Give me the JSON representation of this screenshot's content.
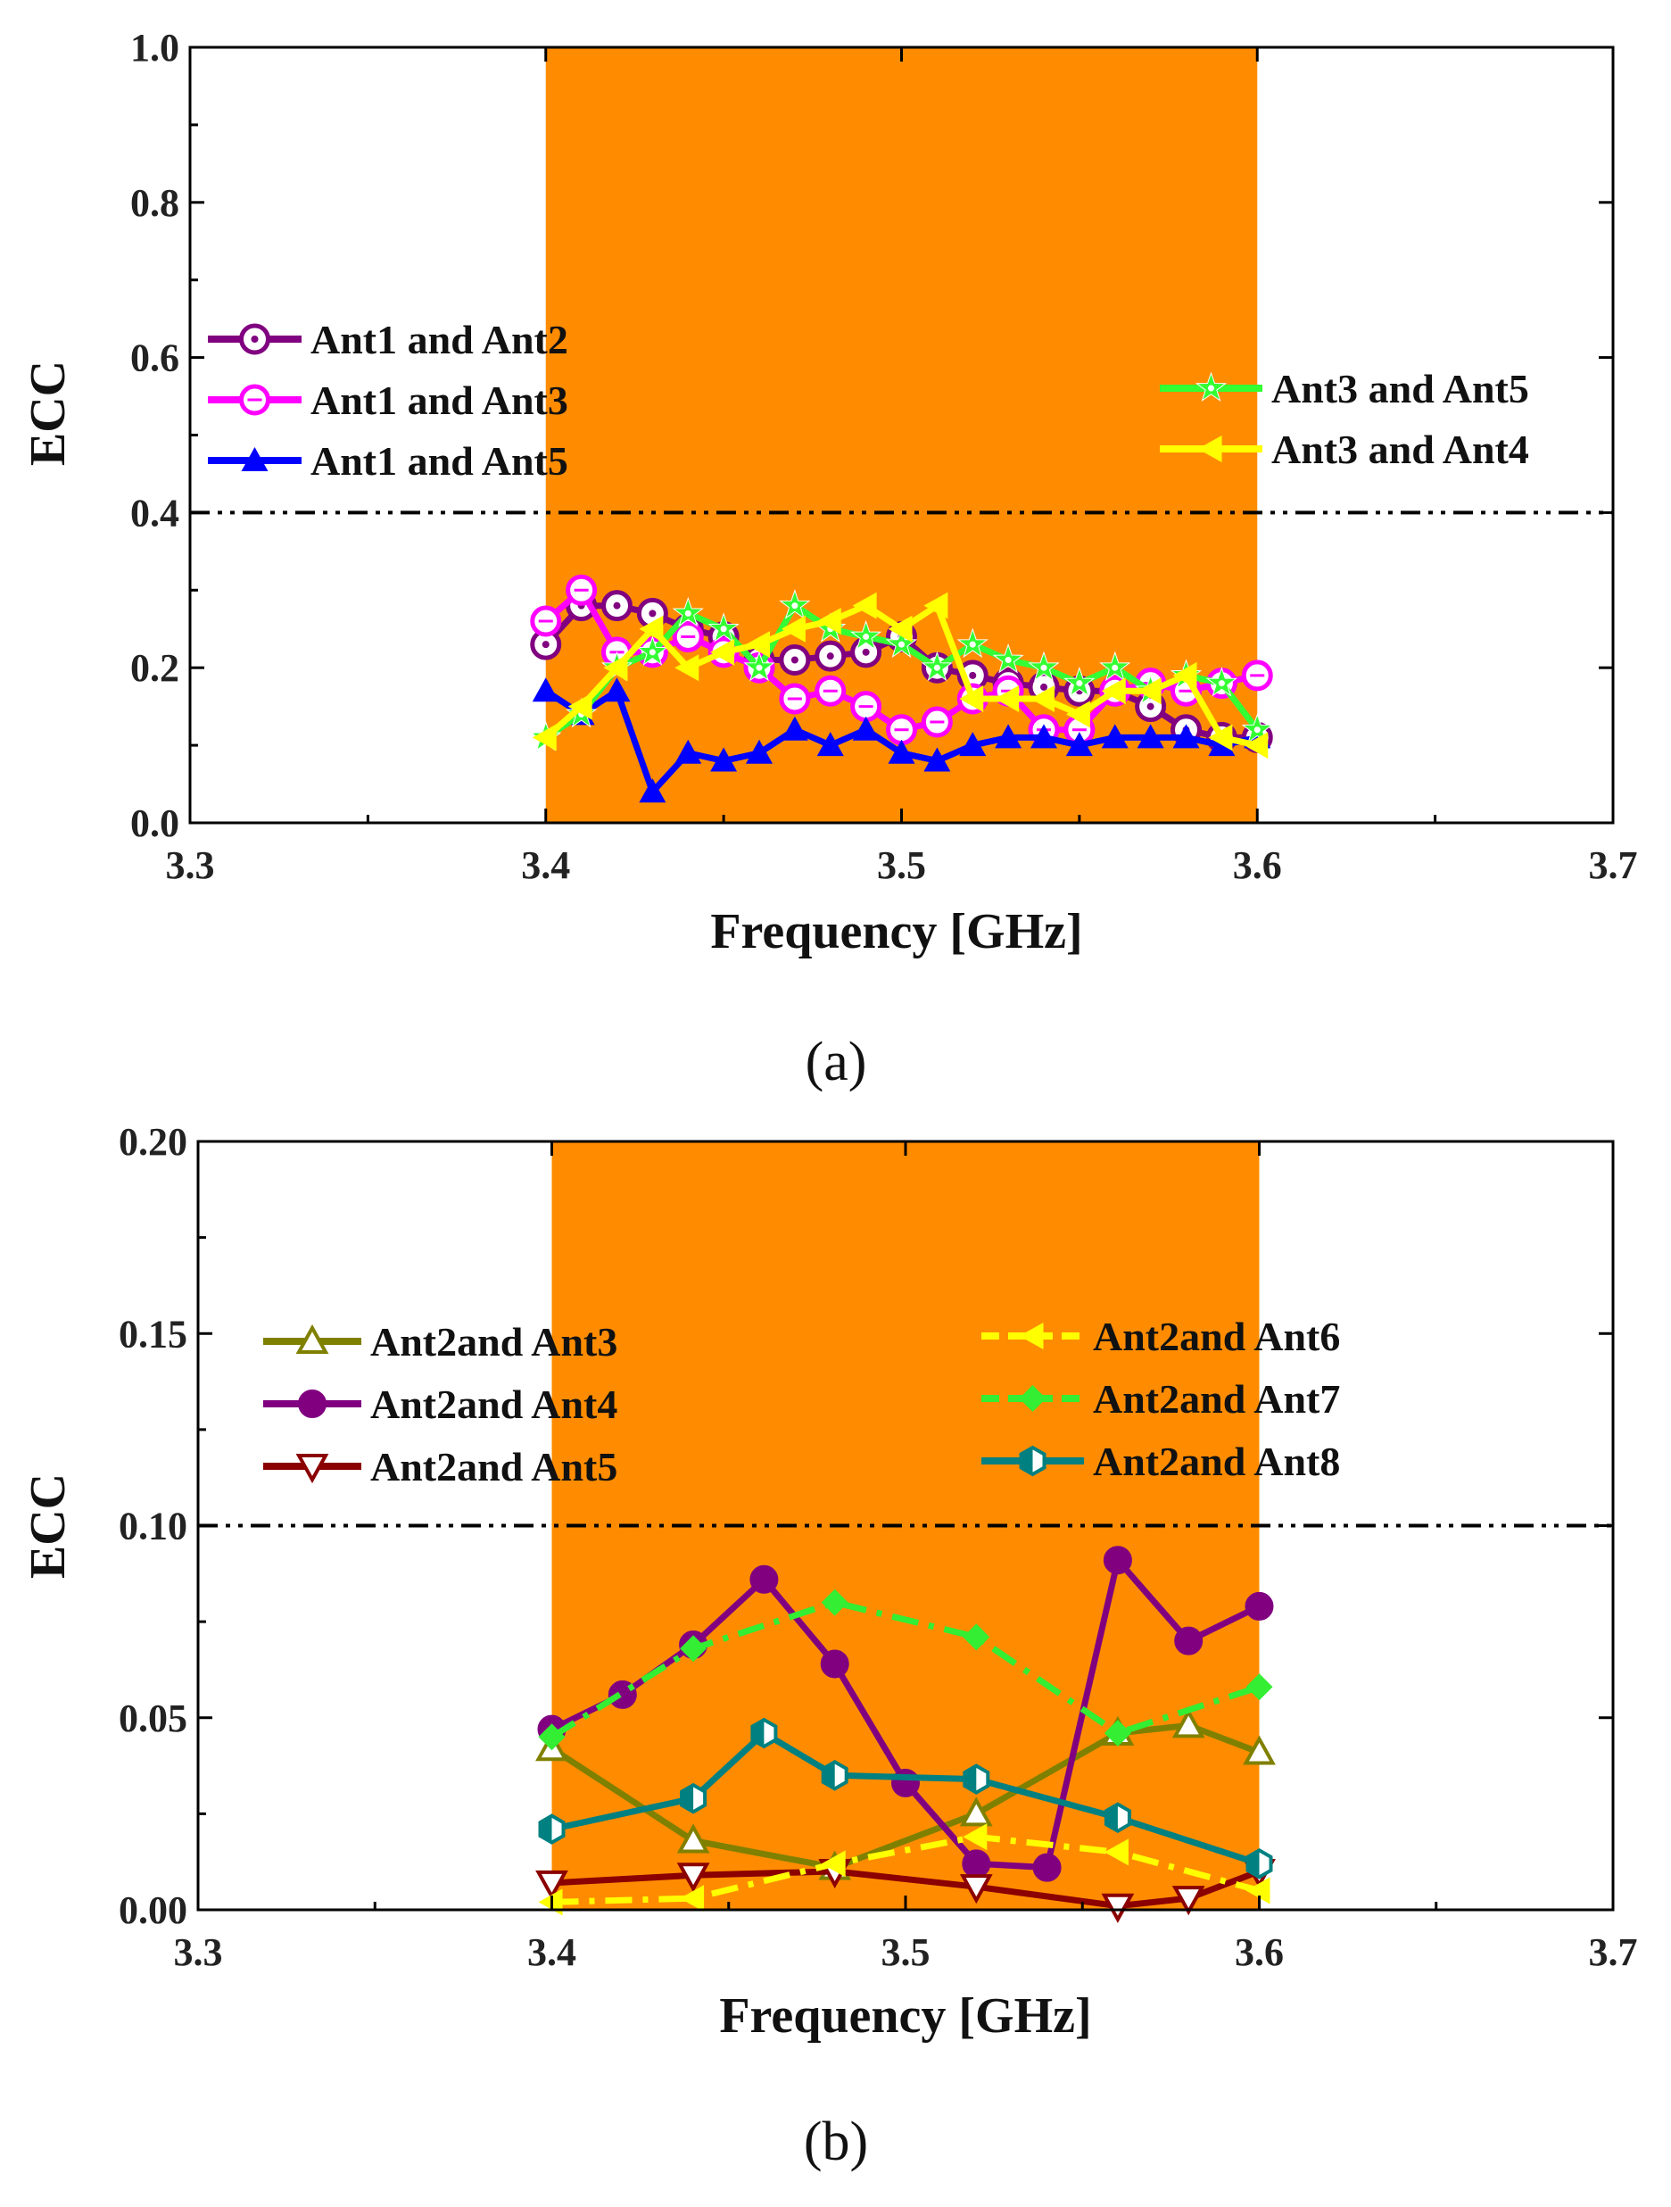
{
  "chart_data": [
    {
      "type": "line",
      "panel_label": "(a)",
      "xlabel": "Frequency [GHz]",
      "ylabel": "ECC",
      "xlim": [
        3.3,
        3.7
      ],
      "ylim": [
        0.0,
        1.0
      ],
      "xticks": [
        3.3,
        3.4,
        3.5,
        3.6,
        3.7
      ],
      "xtick_labels": [
        "3.3",
        "3.4",
        "3.5",
        "3.6",
        "3.7"
      ],
      "yticks": [
        0.0,
        0.2,
        0.4,
        0.6,
        0.8,
        1.0
      ],
      "ytick_labels": [
        "0.0",
        "0.2",
        "0.4",
        "0.6",
        "0.8",
        "1.0"
      ],
      "band": {
        "from": 3.4,
        "to": 3.6,
        "color": "#ff8c00"
      },
      "threshold": {
        "value": 0.4,
        "style": "dash-dot",
        "color": "#000000"
      },
      "series": [
        {
          "name": "Ant1 and Ant2",
          "color": "#800080",
          "marker": "circle-dot",
          "legend_group": "left",
          "x": [
            3.4,
            3.41,
            3.42,
            3.43,
            3.44,
            3.45,
            3.46,
            3.47,
            3.48,
            3.49,
            3.5,
            3.51,
            3.52,
            3.53,
            3.54,
            3.55,
            3.56,
            3.57,
            3.58,
            3.59,
            3.6
          ],
          "y": [
            0.23,
            0.28,
            0.28,
            0.27,
            0.25,
            0.24,
            0.21,
            0.21,
            0.215,
            0.22,
            0.24,
            0.2,
            0.19,
            0.18,
            0.175,
            0.17,
            0.17,
            0.15,
            0.12,
            0.11,
            0.11
          ]
        },
        {
          "name": "Ant1 and Ant3",
          "color": "#ff00ff",
          "marker": "circle-open",
          "legend_group": "left",
          "x": [
            3.4,
            3.41,
            3.42,
            3.43,
            3.44,
            3.45,
            3.46,
            3.47,
            3.48,
            3.49,
            3.5,
            3.51,
            3.52,
            3.53,
            3.54,
            3.55,
            3.56,
            3.57,
            3.58,
            3.59,
            3.6
          ],
          "y": [
            0.26,
            0.3,
            0.22,
            0.22,
            0.24,
            0.22,
            0.2,
            0.16,
            0.17,
            0.15,
            0.12,
            0.13,
            0.16,
            0.17,
            0.12,
            0.12,
            0.17,
            0.18,
            0.17,
            0.18,
            0.19
          ]
        },
        {
          "name": "Ant1 and Ant5",
          "color": "#0000ff",
          "marker": "triangle-up-filled",
          "legend_group": "left",
          "x": [
            3.4,
            3.41,
            3.42,
            3.43,
            3.44,
            3.45,
            3.46,
            3.47,
            3.48,
            3.49,
            3.5,
            3.51,
            3.52,
            3.53,
            3.54,
            3.55,
            3.56,
            3.57,
            3.58,
            3.59,
            3.6
          ],
          "y": [
            0.17,
            0.14,
            0.17,
            0.04,
            0.09,
            0.08,
            0.09,
            0.12,
            0.1,
            0.12,
            0.09,
            0.08,
            0.1,
            0.11,
            0.11,
            0.1,
            0.11,
            0.11,
            0.11,
            0.1,
            0.11
          ]
        },
        {
          "name": "Ant3 and Ant5",
          "color": "#33ff33",
          "marker": "star",
          "legend_group": "right",
          "x": [
            3.4,
            3.41,
            3.42,
            3.43,
            3.44,
            3.45,
            3.46,
            3.47,
            3.48,
            3.49,
            3.5,
            3.51,
            3.52,
            3.53,
            3.54,
            3.55,
            3.56,
            3.57,
            3.58,
            3.59,
            3.6
          ],
          "y": [
            0.11,
            0.14,
            0.2,
            0.22,
            0.27,
            0.25,
            0.2,
            0.28,
            0.25,
            0.24,
            0.23,
            0.2,
            0.23,
            0.21,
            0.2,
            0.18,
            0.2,
            0.17,
            0.19,
            0.18,
            0.12
          ]
        },
        {
          "name": "Ant3 and Ant4",
          "color": "#ffff00",
          "marker": "triangle-left-filled",
          "legend_group": "right",
          "x": [
            3.4,
            3.41,
            3.42,
            3.43,
            3.44,
            3.45,
            3.46,
            3.47,
            3.48,
            3.49,
            3.5,
            3.51,
            3.52,
            3.53,
            3.54,
            3.55,
            3.56,
            3.57,
            3.58,
            3.59,
            3.6
          ],
          "y": [
            0.11,
            0.15,
            0.2,
            0.25,
            0.2,
            0.22,
            0.23,
            0.25,
            0.26,
            0.28,
            0.25,
            0.28,
            0.16,
            0.16,
            0.16,
            0.14,
            0.17,
            0.17,
            0.19,
            0.11,
            0.1
          ]
        }
      ]
    },
    {
      "type": "line",
      "panel_label": "(b)",
      "xlabel": "Frequency [GHz]",
      "ylabel": "ECC",
      "xlim": [
        3.3,
        3.7
      ],
      "ylim": [
        0.0,
        0.2
      ],
      "xticks": [
        3.3,
        3.4,
        3.5,
        3.6,
        3.7
      ],
      "xtick_labels": [
        "3.3",
        "3.4",
        "3.5",
        "3.6",
        "3.7"
      ],
      "yticks": [
        0.0,
        0.05,
        0.1,
        0.15,
        0.2
      ],
      "ytick_labels": [
        "0.00",
        "0.05",
        "0.10",
        "0.15",
        "0.20"
      ],
      "band": {
        "from": 3.4,
        "to": 3.6,
        "color": "#ff8c00"
      },
      "threshold": {
        "value": 0.1,
        "style": "dash-dot",
        "color": "#000000"
      },
      "series": [
        {
          "name": "Ant2and Ant3",
          "color": "#808000",
          "marker": "triangle-up-open",
          "legend_group": "left",
          "dashed": false,
          "x": [
            3.4,
            3.44,
            3.48,
            3.52,
            3.56,
            3.58,
            3.6
          ],
          "y": [
            0.042,
            0.018,
            0.011,
            0.025,
            0.046,
            0.048,
            0.041
          ]
        },
        {
          "name": "Ant2and Ant4",
          "color": "#800080",
          "marker": "circle-filled",
          "legend_group": "left",
          "dashed": false,
          "x": [
            3.4,
            3.42,
            3.44,
            3.46,
            3.48,
            3.5,
            3.52,
            3.54,
            3.56,
            3.58,
            3.6
          ],
          "y": [
            0.047,
            0.056,
            0.069,
            0.086,
            0.064,
            0.033,
            0.012,
            0.011,
            0.091,
            0.07,
            0.079
          ]
        },
        {
          "name": "Ant2and Ant5",
          "color": "#8b0000",
          "marker": "triangle-down-open",
          "legend_group": "left",
          "dashed": false,
          "x": [
            3.4,
            3.44,
            3.48,
            3.52,
            3.56,
            3.58,
            3.6
          ],
          "y": [
            0.007,
            0.009,
            0.01,
            0.006,
            0.001,
            0.003,
            0.01
          ]
        },
        {
          "name": "Ant2and Ant6",
          "color": "#ffff00",
          "marker": "triangle-left-filled",
          "legend_group": "right",
          "dashed": true,
          "x": [
            3.4,
            3.44,
            3.48,
            3.52,
            3.56,
            3.6
          ],
          "y": [
            0.002,
            0.003,
            0.012,
            0.019,
            0.015,
            0.005
          ]
        },
        {
          "name": "Ant2and Ant7",
          "color": "#33ee33",
          "marker": "diamond-filled",
          "legend_group": "right",
          "dashed": true,
          "x": [
            3.4,
            3.44,
            3.48,
            3.52,
            3.56,
            3.6
          ],
          "y": [
            0.045,
            0.068,
            0.08,
            0.071,
            0.046,
            0.058
          ]
        },
        {
          "name": "Ant2and Ant8",
          "color": "#008080",
          "marker": "hexagon-half",
          "legend_group": "right",
          "dashed": false,
          "x": [
            3.4,
            3.44,
            3.46,
            3.48,
            3.52,
            3.56,
            3.6
          ],
          "y": [
            0.021,
            0.029,
            0.046,
            0.035,
            0.034,
            0.024,
            0.012
          ]
        }
      ]
    }
  ]
}
